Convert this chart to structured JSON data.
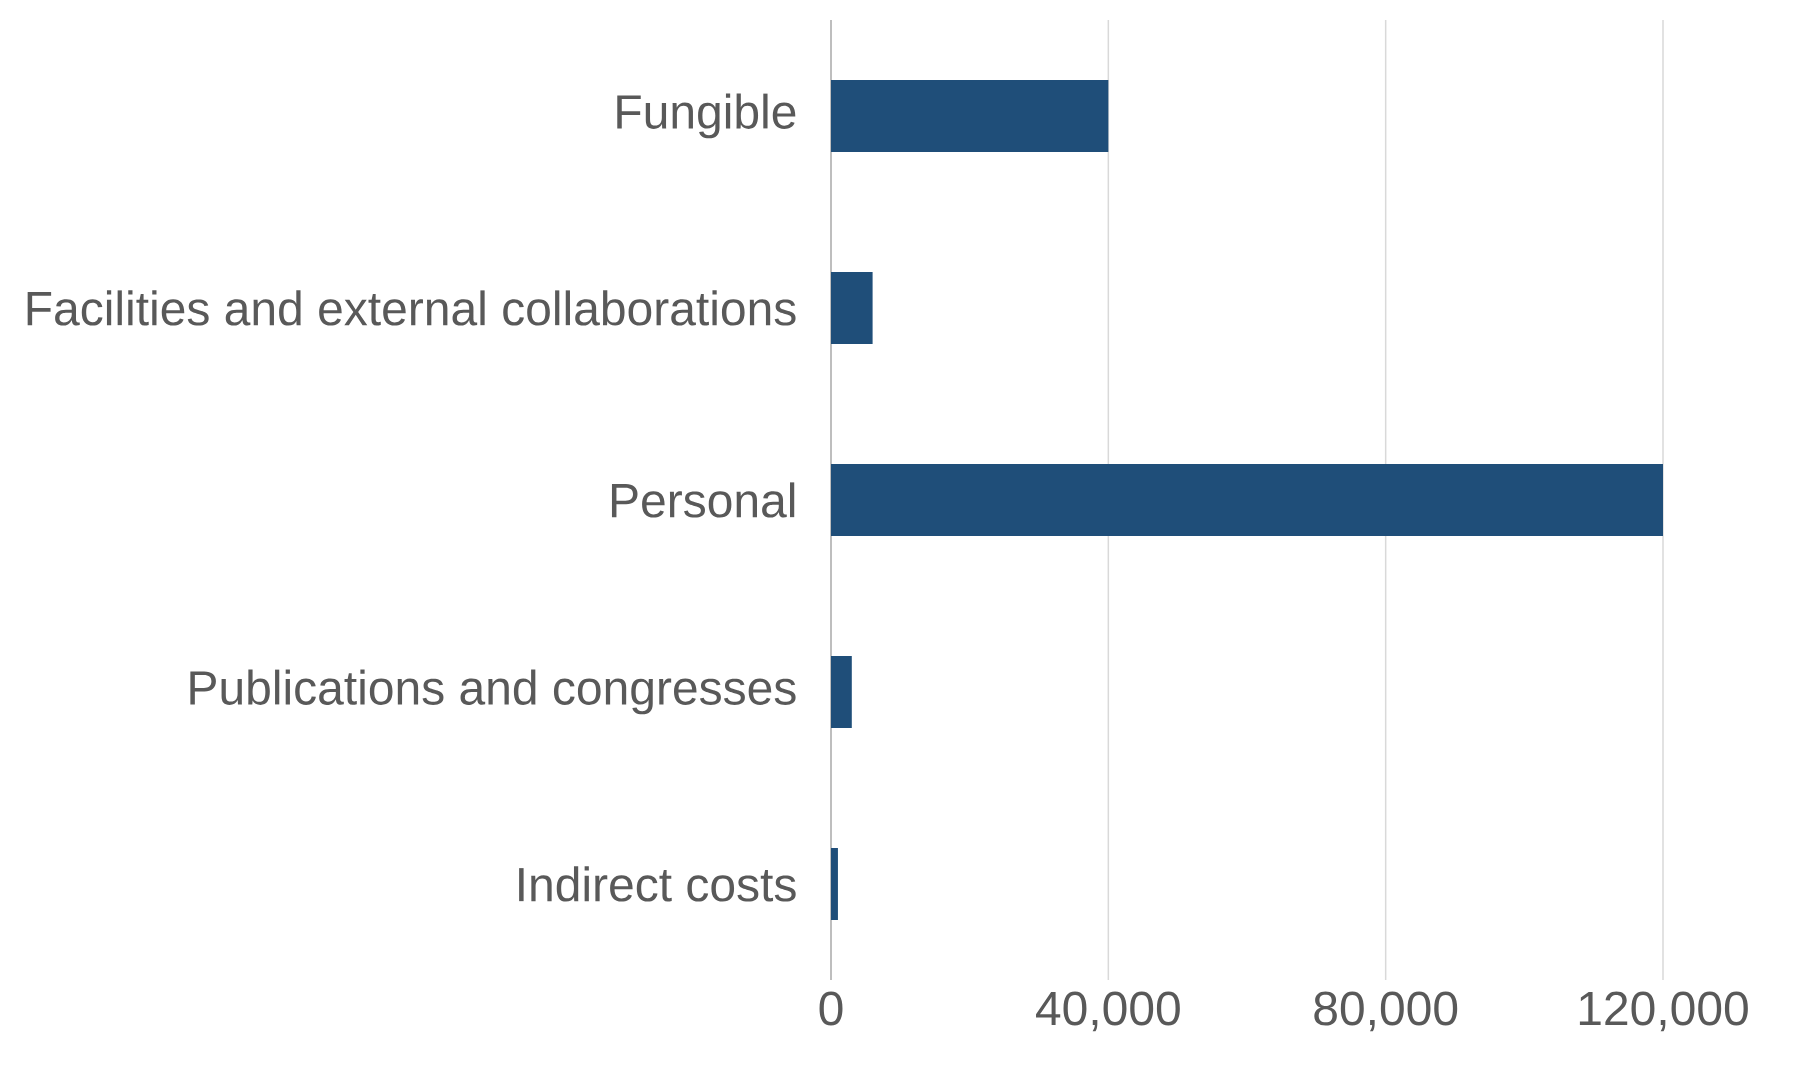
{
  "chart_data": {
    "type": "bar",
    "orientation": "horizontal",
    "categories": [
      "Fungible",
      "Facilities and external collaborations",
      "Personal",
      "Publications and congresses",
      "Indirect costs"
    ],
    "values": [
      40000,
      6000,
      120000,
      3000,
      1000
    ],
    "color": "#1f4e79",
    "xlim": [
      0,
      120000
    ],
    "xticks": [
      0,
      {
        "value": 40000,
        "label": "40,000"
      },
      {
        "value": 80000,
        "label": "80,000"
      },
      {
        "value": 120000,
        "label": "120,000"
      }
    ],
    "grid": "x"
  }
}
